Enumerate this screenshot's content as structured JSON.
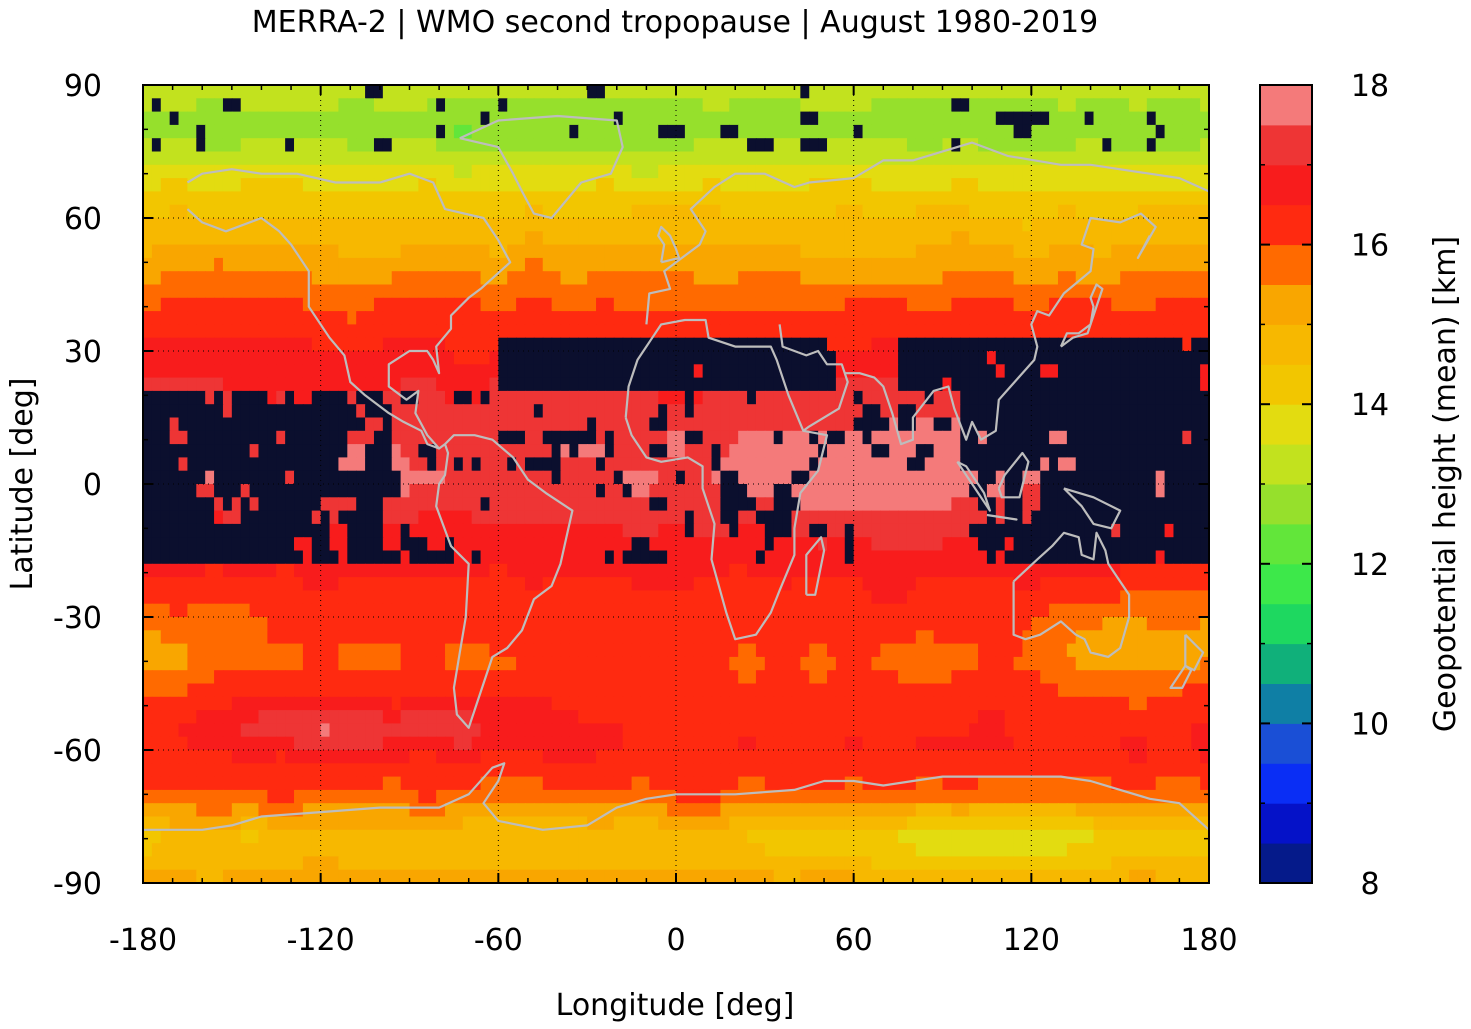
{
  "chart_data": {
    "type": "heatmap",
    "title": "MERRA-2 | WMO second tropopause | August 1980-2019",
    "xlabel": "Longitude [deg]",
    "ylabel": "Latitude [deg]",
    "xlim": [
      -180,
      180
    ],
    "ylim": [
      -90,
      90
    ],
    "xticks": [
      "-180",
      "-120",
      "-60",
      "0",
      "60",
      "120",
      "180"
    ],
    "yticks": [
      "90",
      "60",
      "30",
      "0",
      "-30",
      "-60",
      "-90"
    ],
    "grid": true,
    "colorbar": {
      "label": "Geopotential height (mean) [km]",
      "range": [
        8,
        18
      ],
      "ticks": [
        "18",
        "16",
        "14",
        "12",
        "10",
        "8"
      ],
      "levels": 20,
      "colors": [
        "#0b0f2e",
        "#051a8a",
        "#0512c8",
        "#0a2ef5",
        "#1a4fd6",
        "#0f7fa5",
        "#10b07a",
        "#1ed860",
        "#3de84a",
        "#62e63a",
        "#96e02c",
        "#c2e21e",
        "#e3dc10",
        "#f2c600",
        "#f7b800",
        "#f9a600",
        "#ff6a00",
        "#ff2a10",
        "#f81c1c",
        "#ee3535",
        "#f47a7a",
        "#ffd0d0"
      ]
    },
    "zonal_mean_height_km": {
      "latitude": [
        90,
        80,
        70,
        60,
        50,
        40,
        30,
        20,
        10,
        0,
        -10,
        -20,
        -30,
        -40,
        -50,
        -60,
        -70,
        -80,
        -90
      ],
      "value": [
        13.3,
        12.6,
        13.7,
        14.5,
        15.3,
        16.0,
        16.6,
        17.0,
        17.4,
        17.5,
        17.0,
        16.6,
        16.2,
        16.0,
        16.3,
        16.5,
        16.0,
        14.6,
        15.2
      ]
    },
    "no_data_regions": "Dark navy (below 8 km) fills much of the 20°S–30°N band and patches near the North Pole.",
    "overlay": "Continental coastlines drawn in grey."
  }
}
